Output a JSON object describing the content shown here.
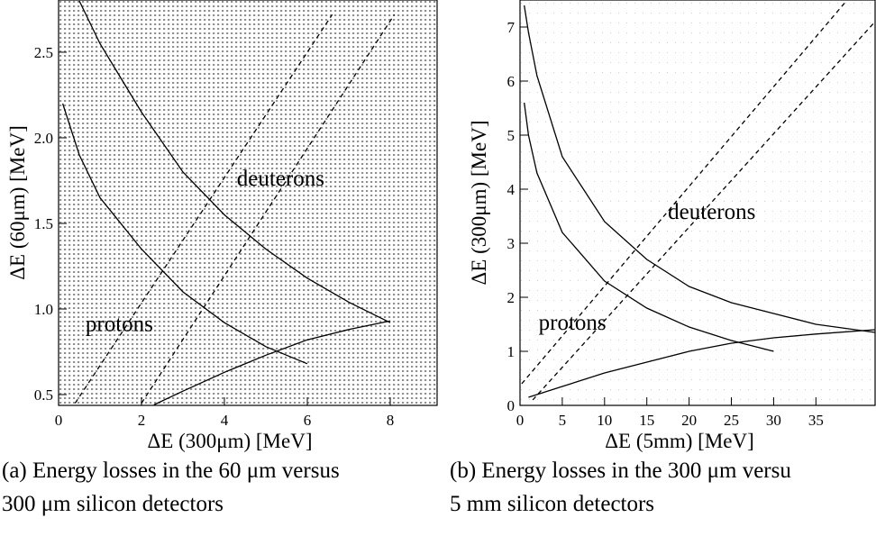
{
  "chart_data": [
    {
      "type": "line",
      "xlabel": "ΔE (300μm)  [MeV]",
      "ylabel": "ΔE (60μm)  [MeV]",
      "xlim": [
        0,
        9.13
      ],
      "ylim": [
        0.437,
        2.805
      ],
      "xticks": [
        0,
        2,
        4,
        6,
        8
      ],
      "yticks": [
        0.5,
        {
          "value": 1,
          "label": "1.0"
        },
        1.5,
        {
          "value": 2,
          "label": "2.0"
        },
        2.5
      ],
      "color": "#000000",
      "density": "dense",
      "annotations": [
        {
          "text": "deuterons",
          "x": 4.3,
          "y": 1.72
        },
        {
          "text": "protons",
          "x": 0.65,
          "y": 0.87
        }
      ],
      "series": [
        {
          "dash": false,
          "x": [
            0.5,
            1,
            2,
            3,
            4,
            5,
            6,
            7,
            8
          ],
          "values": [
            2.8,
            2.55,
            2.15,
            1.8,
            1.55,
            1.35,
            1.18,
            1.04,
            0.92
          ]
        },
        {
          "dash": false,
          "x": [
            0.1,
            0.5,
            1,
            2,
            3,
            4,
            5,
            6
          ],
          "values": [
            2.2,
            1.9,
            1.65,
            1.35,
            1.1,
            0.92,
            0.78,
            0.68
          ]
        },
        {
          "dash": false,
          "x": [
            2.3,
            3,
            4,
            5,
            6,
            7,
            8
          ],
          "values": [
            0.44,
            0.52,
            0.63,
            0.73,
            0.82,
            0.88,
            0.93
          ]
        },
        {
          "dash": true,
          "x": [
            0.4,
            6.6
          ],
          "values": [
            0.45,
            2.72
          ]
        },
        {
          "dash": true,
          "x": [
            2,
            8.1
          ],
          "values": [
            0.45,
            2.72
          ]
        }
      ],
      "caption": [
        "(a) Energy losses in the 60 μm versus",
        "300 μm silicon detectors"
      ]
    },
    {
      "type": "line",
      "xlabel": "ΔE (5mm)  [MeV]",
      "ylabel": "ΔE (300μm)  [MeV]",
      "xlim": [
        0,
        42
      ],
      "ylim": [
        0,
        7.5
      ],
      "xticks": [
        0,
        5,
        10,
        15,
        20,
        25,
        30,
        35
      ],
      "yticks": [
        0,
        1,
        2,
        3,
        4,
        5,
        6,
        7
      ],
      "color": "#000000",
      "density": "sparse",
      "annotations": [
        {
          "text": "deuterons",
          "x": 17.5,
          "y": 3.45
        },
        {
          "text": "protons",
          "x": 2.2,
          "y": 1.4
        }
      ],
      "series": [
        {
          "dash": false,
          "x": [
            0.5,
            1,
            2,
            5,
            10,
            15,
            20,
            25,
            30,
            35,
            42
          ],
          "values": [
            7.4,
            6.9,
            6.1,
            4.6,
            3.4,
            2.7,
            2.2,
            1.9,
            1.7,
            1.5,
            1.35
          ]
        },
        {
          "dash": false,
          "x": [
            0.5,
            1,
            2,
            5,
            10,
            15,
            20,
            25,
            30
          ],
          "values": [
            5.6,
            5,
            4.3,
            3.2,
            2.3,
            1.8,
            1.45,
            1.2,
            1
          ]
        },
        {
          "dash": false,
          "x": [
            1,
            5,
            10,
            15,
            20,
            25,
            30,
            35,
            42
          ],
          "values": [
            0.15,
            0.35,
            0.6,
            0.8,
            1,
            1.15,
            1.25,
            1.32,
            1.4
          ]
        },
        {
          "dash": true,
          "x": [
            0.2,
            38.7
          ],
          "values": [
            0.4,
            7.5
          ]
        },
        {
          "dash": true,
          "x": [
            1.5,
            42
          ],
          "values": [
            0.1,
            7.1
          ]
        }
      ],
      "caption": [
        "(b) Energy losses in the 300 μm versu",
        "5 mm silicon detectors"
      ]
    }
  ]
}
